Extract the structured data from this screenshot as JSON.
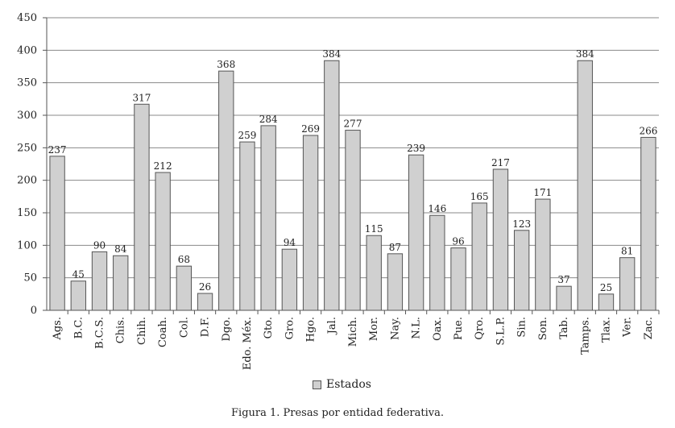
{
  "chart_data": {
    "type": "bar",
    "categories": [
      "Ags.",
      "B.C.",
      "B.C.S.",
      "Chis.",
      "Chih.",
      "Coah.",
      "Col.",
      "D.F.",
      "Dgo.",
      "Edo. Méx.",
      "Gto.",
      "Gro.",
      "Hgo.",
      "Jal.",
      "Mich.",
      "Mor.",
      "Nay.",
      "N.L.",
      "Oax.",
      "Pue.",
      "Qro.",
      "S.L.P.",
      "Sin.",
      "Son.",
      "Tab.",
      "Tamps.",
      "Tlax.",
      "Ver.",
      "Zac."
    ],
    "series": [
      {
        "name": "Estados",
        "values": [
          237,
          45,
          90,
          84,
          317,
          212,
          68,
          26,
          368,
          259,
          284,
          94,
          269,
          384,
          277,
          115,
          87,
          239,
          146,
          96,
          165,
          217,
          123,
          171,
          37,
          384,
          25,
          81,
          266
        ]
      }
    ],
    "ylim": [
      0,
      450
    ],
    "yticks": [
      0,
      50,
      100,
      150,
      200,
      250,
      300,
      350,
      400,
      450
    ],
    "grid": true,
    "legend_position": "bottom",
    "data_labels": true,
    "colors": {
      "bar_fill": "#d0d0d0",
      "bar_stroke": "#555555",
      "grid": "#8a8a8a"
    }
  },
  "legend_label": "Estados",
  "caption": "Figura 1. Presas por entidad federativa."
}
